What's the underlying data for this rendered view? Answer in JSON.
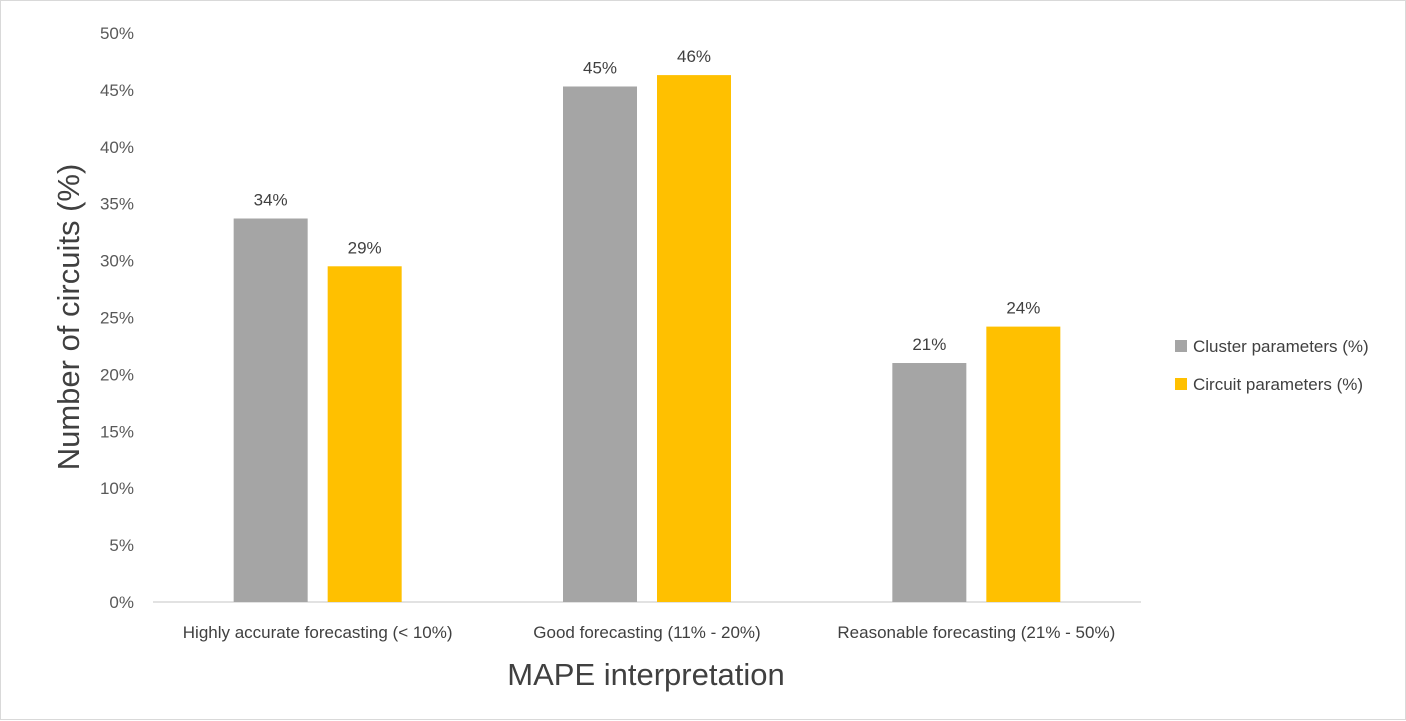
{
  "chart_data": {
    "type": "bar",
    "title": "",
    "xlabel": "MAPE interpretation",
    "ylabel": "Number of circuits (%)",
    "ylim": [
      0,
      50
    ],
    "ytick_step": 5,
    "ytick_suffix": "%",
    "grid": false,
    "legend_position": "right",
    "categories": [
      "Highly accurate forecasting (< 10%)",
      "Good forecasting (11% - 20%)",
      "Reasonable forecasting (21% - 50%)"
    ],
    "series": [
      {
        "name": "Cluster parameters (%)",
        "color": "#a5a5a5",
        "values": [
          33.7,
          45.3,
          21.0
        ],
        "labels": [
          "34%",
          "45%",
          "21%"
        ]
      },
      {
        "name": "Circuit parameters (%)",
        "color": "#ffc000",
        "values": [
          29.5,
          46.3,
          24.2
        ],
        "labels": [
          "29%",
          "46%",
          "24%"
        ]
      }
    ]
  }
}
